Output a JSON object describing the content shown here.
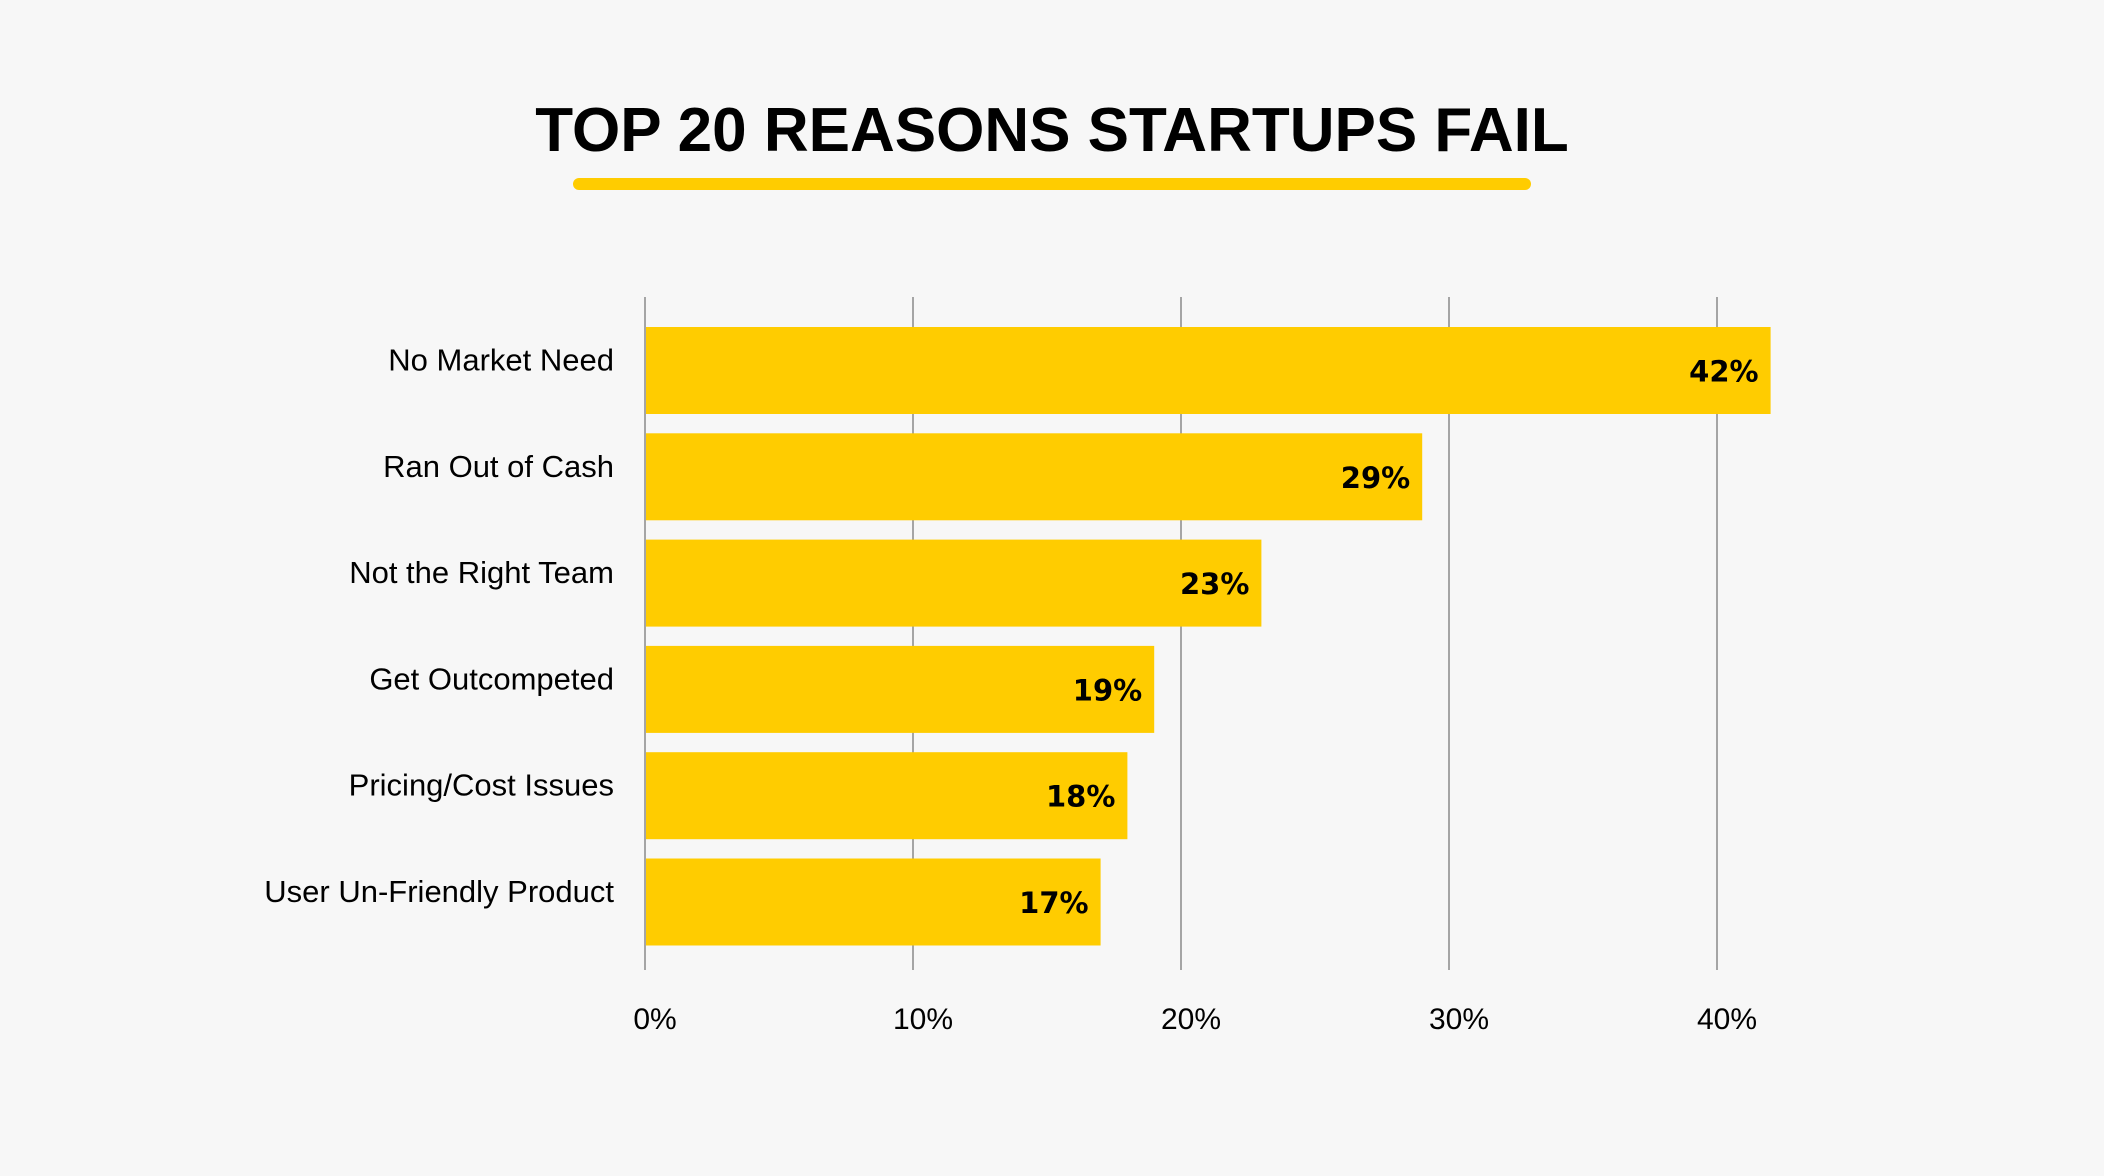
{
  "title": "TOP 20 REASONS STARTUPS FAIL",
  "colors": {
    "background": "#f7f7f7",
    "bar": "#ffcc00",
    "accent": "#ffcc00",
    "gridline": "#8a8a8a",
    "text": "#000000"
  },
  "chart_data": {
    "type": "bar",
    "orientation": "horizontal",
    "title": "TOP 20 REASONS STARTUPS FAIL",
    "categories": [
      "No Market Need",
      "Ran Out of Cash",
      "Not the Right Team",
      "Get Outcompeted",
      "Pricing/Cost Issues",
      "User Un-Friendly Product"
    ],
    "values": [
      42,
      29,
      23,
      19,
      18,
      17
    ],
    "value_labels": [
      "42%",
      "29%",
      "23%",
      "19%",
      "18%",
      "17%"
    ],
    "xlim": [
      0,
      40
    ],
    "xticks": [
      0,
      10,
      20,
      30,
      40
    ],
    "xtick_labels": [
      "0%",
      "10%",
      "20%",
      "30%",
      "40%"
    ],
    "grid": true,
    "legend": "none"
  }
}
